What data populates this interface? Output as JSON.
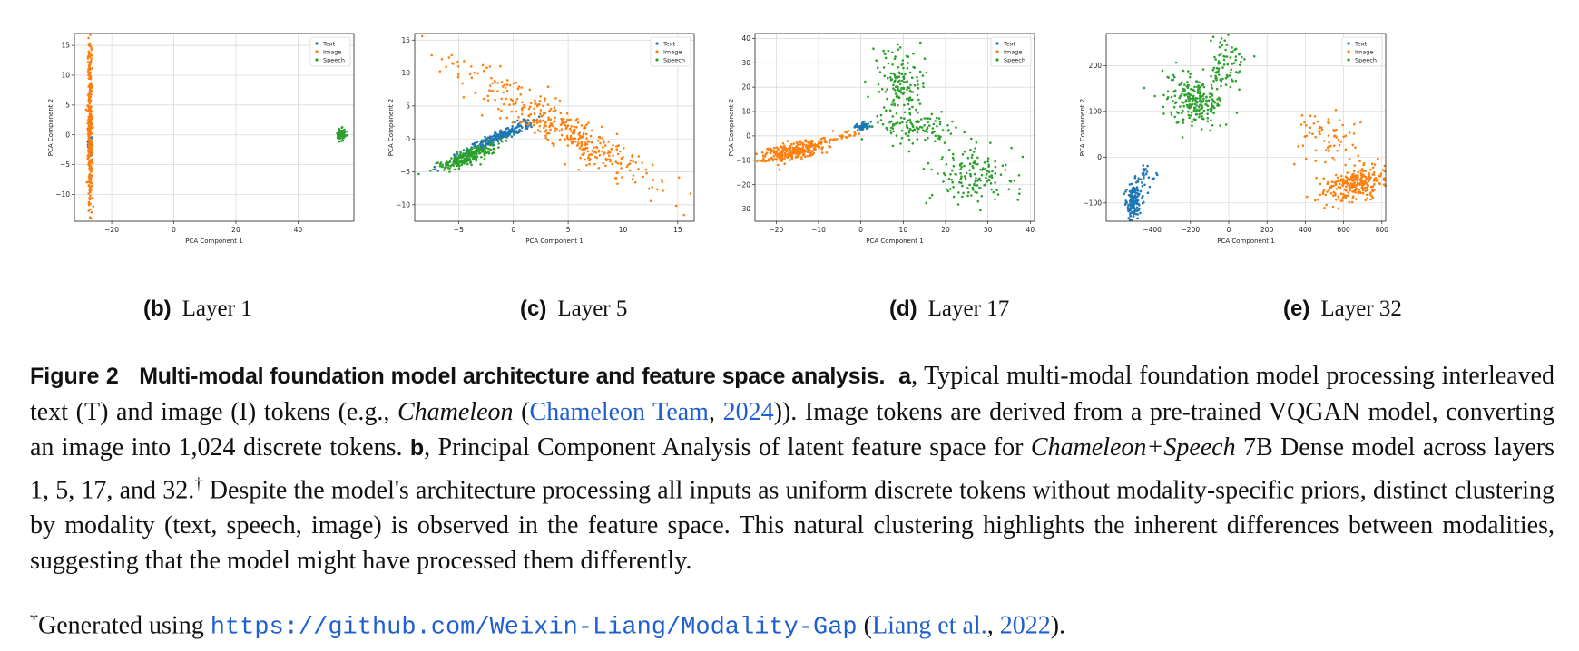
{
  "chart_data": [
    {
      "type": "scatter",
      "xlabel": "PCA Component 1",
      "ylabel": "PCA Component 2",
      "xlim": [
        -32,
        58
      ],
      "ylim": [
        -14.5,
        17
      ],
      "xticks": [
        -20,
        0,
        20,
        40
      ],
      "yticks": [
        -10,
        -5,
        0,
        5,
        10,
        15
      ],
      "grid": true,
      "legend": "top-right",
      "series": [
        {
          "name": "Text",
          "color": "#1f77b4",
          "clusters": [
            {
              "cx": -27,
              "cy": -1.5,
              "sx": 0.3,
              "sy": 0.7,
              "n": 60
            }
          ]
        },
        {
          "name": "Image",
          "color": "#ff7f0e",
          "clusters": [
            {
              "cx": -27,
              "cy": 1.5,
              "sx": 0.35,
              "sy": 7.5,
              "n": 320
            }
          ]
        },
        {
          "name": "Speech",
          "color": "#2ca02c",
          "clusters": [
            {
              "cx": 54,
              "cy": 0,
              "sx": 0.7,
              "sy": 0.5,
              "n": 80
            }
          ]
        }
      ]
    },
    {
      "type": "scatter",
      "xlabel": "PCA Component 1",
      "ylabel": "PCA Component 2",
      "xlim": [
        -9,
        16.5
      ],
      "ylim": [
        -12.5,
        16
      ],
      "xticks": [
        -5,
        0,
        5,
        10,
        15
      ],
      "yticks": [
        -10,
        -5,
        0,
        5,
        10,
        15
      ],
      "grid": true,
      "legend": "top-right",
      "series": [
        {
          "name": "Text",
          "color": "#1f77b4",
          "clusters": [
            {
              "cx": -1.5,
              "cy": 0.2,
              "sx": 1.9,
              "sy": 0.4,
              "n": 250,
              "slope": 0.75
            }
          ]
        },
        {
          "name": "Image",
          "color": "#ff7f0e",
          "clusters": [
            {
              "cx": 4,
              "cy": 2,
              "sx": 5.5,
              "sy": 1.4,
              "n": 380,
              "slope": -0.98
            }
          ]
        },
        {
          "name": "Speech",
          "color": "#2ca02c",
          "clusters": [
            {
              "cx": -4.3,
              "cy": -2.8,
              "sx": 1.4,
              "sy": 0.5,
              "n": 220,
              "slope": 0.7
            }
          ]
        }
      ]
    },
    {
      "type": "scatter",
      "xlabel": "PCA Component 1",
      "ylabel": "PCA Component 2",
      "xlim": [
        -25,
        41
      ],
      "ylim": [
        -35,
        42
      ],
      "xticks": [
        -20,
        -10,
        0,
        10,
        20,
        30,
        40
      ],
      "yticks": [
        -30,
        -20,
        -10,
        0,
        10,
        20,
        30,
        40
      ],
      "grid": true,
      "legend": "top-right",
      "series": [
        {
          "name": "Text",
          "color": "#1f77b4",
          "clusters": [
            {
              "cx": 0.5,
              "cy": 4,
              "sx": 1.0,
              "sy": 0.7,
              "n": 60
            }
          ]
        },
        {
          "name": "Image",
          "color": "#ff7f0e",
          "clusters": [
            {
              "cx": -16,
              "cy": -6.5,
              "sx": 4,
              "sy": 1.8,
              "n": 280,
              "slope": 0.38
            },
            {
              "cx": -6,
              "cy": -1,
              "sx": 4,
              "sy": 1,
              "n": 40,
              "slope": 0.4
            }
          ]
        },
        {
          "name": "Speech",
          "color": "#2ca02c",
          "clusters": [
            {
              "cx": 9,
              "cy": 22,
              "sx": 2.8,
              "sy": 7,
              "n": 140
            },
            {
              "cx": 12,
              "cy": 4,
              "sx": 5,
              "sy": 3,
              "n": 120
            },
            {
              "cx": 27,
              "cy": -17,
              "sx": 5,
              "sy": 6,
              "n": 150
            }
          ]
        }
      ]
    },
    {
      "type": "scatter",
      "xlabel": "PCA Component 1",
      "ylabel": "PCA Component 2",
      "xlim": [
        -640,
        820
      ],
      "ylim": [
        -140,
        270
      ],
      "xticks": [
        -400,
        -200,
        0,
        200,
        400,
        600,
        800
      ],
      "yticks": [
        -100,
        0,
        100,
        200
      ],
      "grid": true,
      "legend": "top-right",
      "series": [
        {
          "name": "Text",
          "color": "#1f77b4",
          "clusters": [
            {
              "cx": -500,
              "cy": -100,
              "sx": 20,
              "sy": 20,
              "n": 140
            },
            {
              "cx": -440,
              "cy": -45,
              "sx": 25,
              "sy": 15,
              "n": 30
            }
          ]
        },
        {
          "name": "Image",
          "color": "#ff7f0e",
          "clusters": [
            {
              "cx": 660,
              "cy": -60,
              "sx": 40,
              "sy": 40,
              "n": 260,
              "slope": -1.5
            },
            {
              "cx": 500,
              "cy": 40,
              "sx": 80,
              "sy": 30,
              "n": 70
            }
          ]
        },
        {
          "name": "Speech",
          "color": "#2ca02c",
          "clusters": [
            {
              "cx": -180,
              "cy": 120,
              "sx": 60,
              "sy": 35,
              "n": 220,
              "slope": 0.8
            },
            {
              "cx": -20,
              "cy": 200,
              "sx": 55,
              "sy": 30,
              "n": 80
            }
          ]
        }
      ]
    }
  ],
  "panels": [
    {
      "label": "(b)",
      "title": "Layer 1"
    },
    {
      "label": "(c)",
      "title": "Layer 5"
    },
    {
      "label": "(d)",
      "title": "Layer 17"
    },
    {
      "label": "(e)",
      "title": "Layer 32"
    }
  ],
  "caption": {
    "fig_label": "Figure 2",
    "fig_title": "Multi-modal foundation model architecture and feature space analysis.",
    "a_label": "a",
    "a_text_1": ", Typical multi-modal foundation model processing interleaved text (T) and image (I) tokens (e.g., ",
    "a_ital": "Chameleon",
    "a_text_2": " (",
    "cite_chameleon": "Chameleon Team",
    "cite_sep": ", ",
    "cite_chameleon_year": "2024",
    "a_text_3": ")). Image tokens are derived from a pre-trained VQGAN model, converting an image into 1,024 discrete tokens. ",
    "b_label": "b",
    "b_text_1": ", Principal Component Analysis of latent feature space for ",
    "b_ital": "Chameleon+Speech",
    "b_text_2": " 7B Dense model across layers 1, 5, 17, and 32.",
    "dagger": "†",
    "b_text_3": " Despite the model's architecture processing all inputs as uniform discrete tokens without modality-specific priors, distinct clustering by modality (text, speech, image) is observed in the feature space. This natural clustering highlights the inherent differences between modalities, suggesting that the model might have processed them differently."
  },
  "footnote": {
    "dagger": "†",
    "text": "Generated using ",
    "url": "https://github.com/Weixin-Liang/Modality-Gap",
    "open": " (",
    "cite_author": "Liang et al.",
    "sep": ", ",
    "cite_year": "2022",
    "close": ")."
  }
}
